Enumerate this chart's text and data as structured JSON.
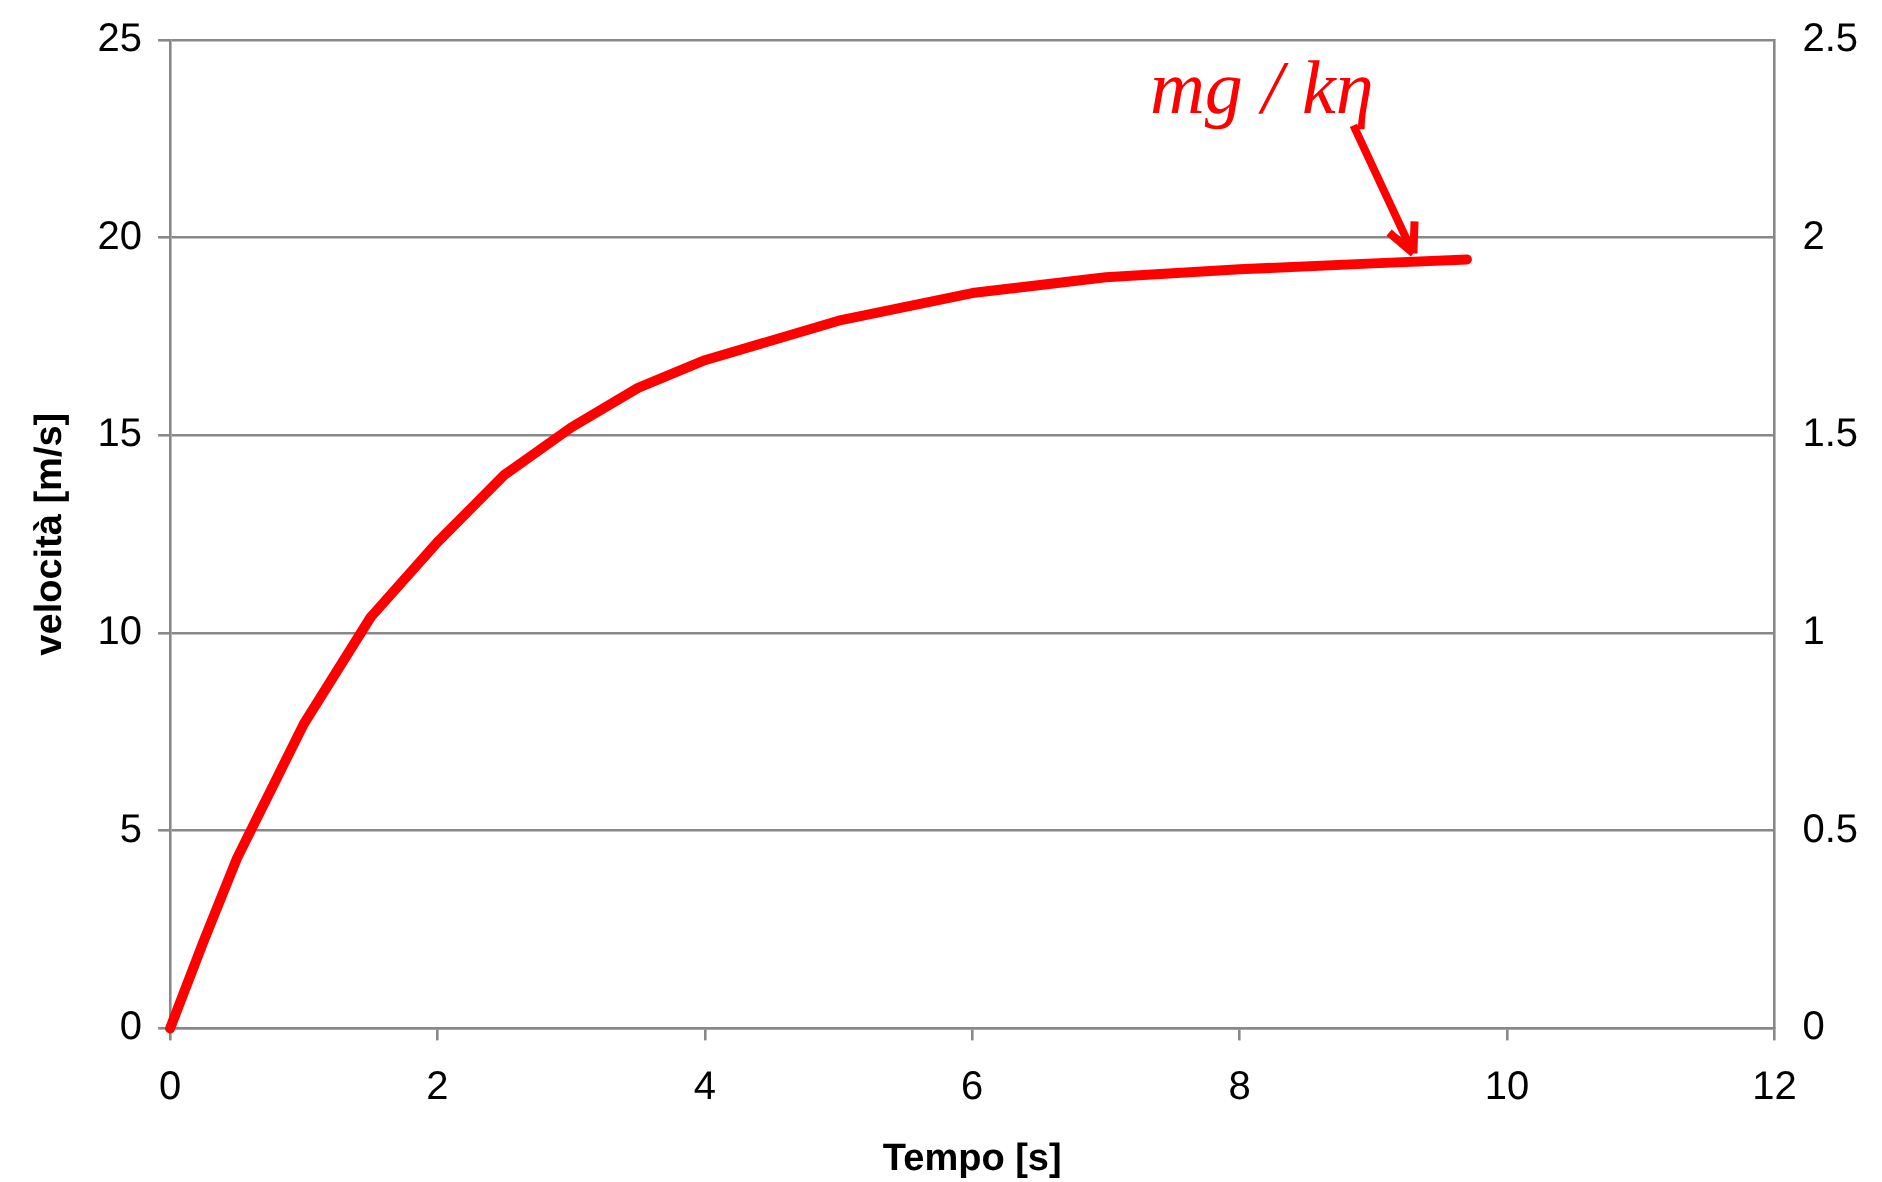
{
  "chart_data": {
    "type": "line",
    "xlabel": "Tempo [s]",
    "ylabel": "velocità [m/s]",
    "x": [
      0,
      0.25,
      0.5,
      0.75,
      1,
      1.5,
      2,
      2.5,
      3,
      3.5,
      4,
      5,
      6,
      7,
      8,
      9,
      9.7
    ],
    "series": [
      {
        "color": "#ff0000",
        "values": [
          0,
          2.2,
          4.3,
          6.0,
          7.7,
          10.4,
          12.3,
          14.0,
          15.2,
          16.2,
          16.9,
          17.9,
          18.6,
          19.0,
          19.2,
          19.35,
          19.45
        ]
      }
    ],
    "xlim": [
      0,
      12
    ],
    "xticks": [
      0,
      2,
      4,
      6,
      8,
      10,
      12
    ],
    "ylim": [
      0,
      25
    ],
    "yticks": [
      0,
      5,
      10,
      15,
      20,
      25
    ],
    "y2lim": [
      0,
      2.5
    ],
    "y2ticks": [
      0,
      0.5,
      1,
      1.5,
      2,
      2.5
    ],
    "grid": "y",
    "marker": "none",
    "line_style": "solid",
    "annotations": [
      {
        "text": "mg / kη",
        "x": 9.3,
        "y": 19.4
      }
    ]
  }
}
